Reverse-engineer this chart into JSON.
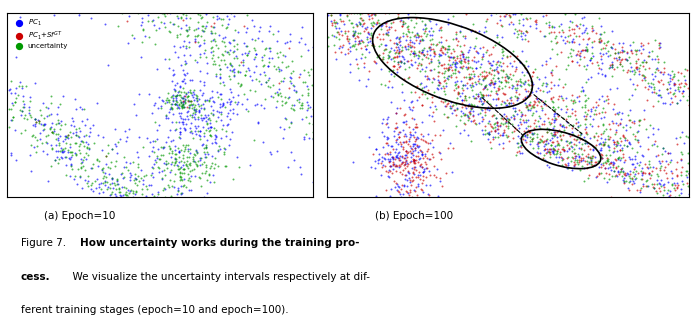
{
  "title_text": "Figure 7.  \\textbf{How uncertainty works during the training pro-\\ncess.}  We visualize the uncertainty intervals respectively at dif-\\nferent training stages (epoch=10 and epoch=100).",
  "caption_line1": "Figure 7.   How uncertainty works during the training pro-",
  "caption_bold": "How uncertainty works during the training pro-",
  "caption_line2": "cess.   We visualize the uncertainty intervals respectively at dif-",
  "caption_line3": "ferent training stages (epoch=10 and epoch=100).",
  "label_a": "(a) Epoch=10",
  "label_b": "(b) Epoch=100",
  "legend_pc1": "PC",
  "legend_pc1_gt": "PC",
  "legend_uncertainty": "uncertainty",
  "color_blue": "#0000FF",
  "color_red": "#CC0000",
  "color_green": "#009900",
  "bg_color": "#FFFFFF",
  "seed": 42
}
